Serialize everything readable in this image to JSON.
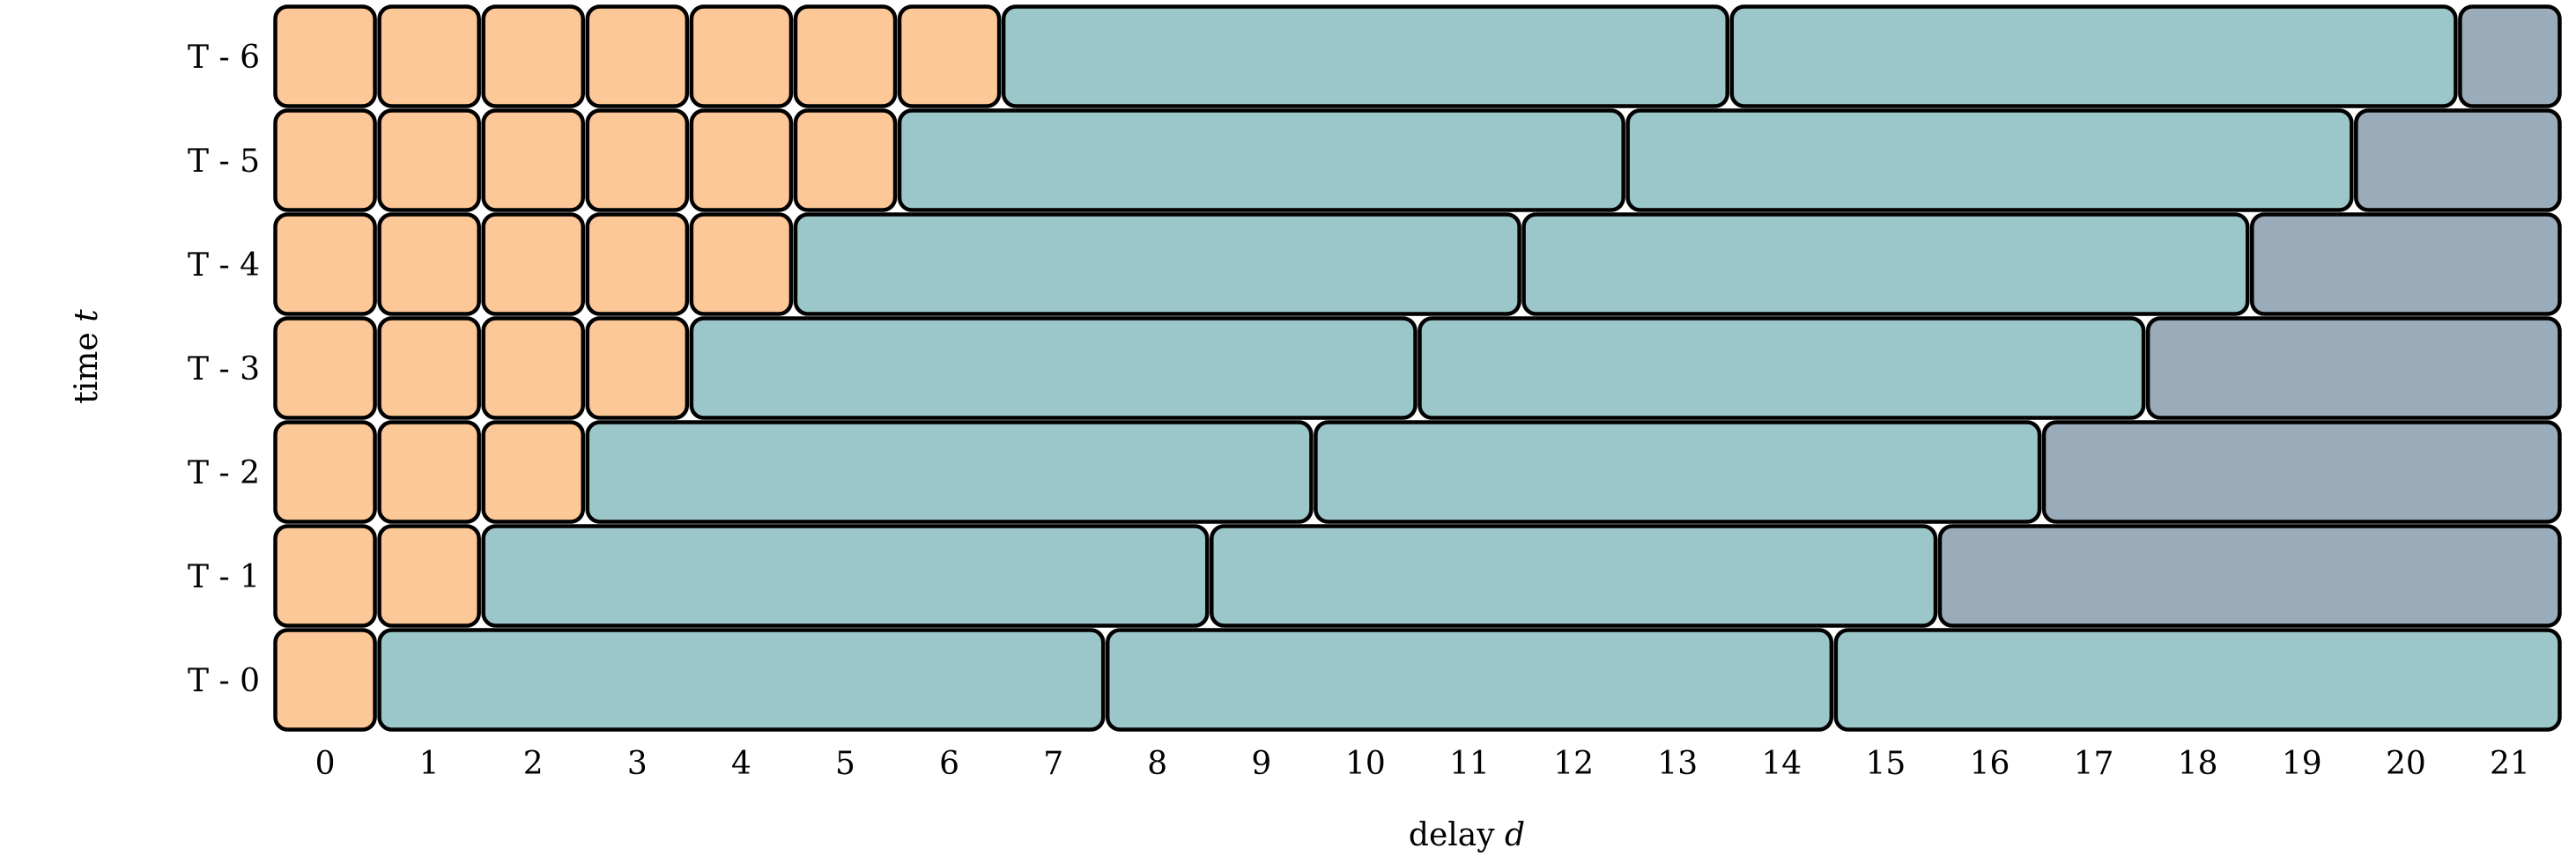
{
  "axes": {
    "y_label_prefix": "time ",
    "y_label_var": "t",
    "x_label_prefix": "delay ",
    "x_label_var": "d"
  },
  "colors": {
    "orange": "#fdc898",
    "teal": "#9cc7ca",
    "slate": "#9aabb9",
    "stroke": "#000000"
  },
  "x_ticks": [
    "0",
    "1",
    "2",
    "3",
    "4",
    "5",
    "6",
    "7",
    "8",
    "9",
    "10",
    "11",
    "12",
    "13",
    "14",
    "15",
    "16",
    "17",
    "18",
    "19",
    "20",
    "21"
  ],
  "rows": [
    {
      "label": "T - 6",
      "blocks": [
        [
          0,
          0,
          "orange"
        ],
        [
          1,
          1,
          "orange"
        ],
        [
          2,
          2,
          "orange"
        ],
        [
          3,
          3,
          "orange"
        ],
        [
          4,
          4,
          "orange"
        ],
        [
          5,
          5,
          "orange"
        ],
        [
          6,
          6,
          "orange"
        ],
        [
          7,
          13,
          "teal"
        ],
        [
          14,
          20,
          "teal"
        ],
        [
          21,
          21,
          "slate"
        ]
      ]
    },
    {
      "label": "T - 5",
      "blocks": [
        [
          0,
          0,
          "orange"
        ],
        [
          1,
          1,
          "orange"
        ],
        [
          2,
          2,
          "orange"
        ],
        [
          3,
          3,
          "orange"
        ],
        [
          4,
          4,
          "orange"
        ],
        [
          5,
          5,
          "orange"
        ],
        [
          6,
          12,
          "teal"
        ],
        [
          13,
          19,
          "teal"
        ],
        [
          20,
          21,
          "slate"
        ]
      ]
    },
    {
      "label": "T - 4",
      "blocks": [
        [
          0,
          0,
          "orange"
        ],
        [
          1,
          1,
          "orange"
        ],
        [
          2,
          2,
          "orange"
        ],
        [
          3,
          3,
          "orange"
        ],
        [
          4,
          4,
          "orange"
        ],
        [
          5,
          11,
          "teal"
        ],
        [
          12,
          18,
          "teal"
        ],
        [
          19,
          21,
          "slate"
        ]
      ]
    },
    {
      "label": "T - 3",
      "blocks": [
        [
          0,
          0,
          "orange"
        ],
        [
          1,
          1,
          "orange"
        ],
        [
          2,
          2,
          "orange"
        ],
        [
          3,
          3,
          "orange"
        ],
        [
          4,
          10,
          "teal"
        ],
        [
          11,
          17,
          "teal"
        ],
        [
          18,
          21,
          "slate"
        ]
      ]
    },
    {
      "label": "T - 2",
      "blocks": [
        [
          0,
          0,
          "orange"
        ],
        [
          1,
          1,
          "orange"
        ],
        [
          2,
          2,
          "orange"
        ],
        [
          3,
          9,
          "teal"
        ],
        [
          10,
          16,
          "teal"
        ],
        [
          17,
          21,
          "slate"
        ]
      ]
    },
    {
      "label": "T - 1",
      "blocks": [
        [
          0,
          0,
          "orange"
        ],
        [
          1,
          1,
          "orange"
        ],
        [
          2,
          8,
          "teal"
        ],
        [
          9,
          15,
          "teal"
        ],
        [
          16,
          21,
          "slate"
        ]
      ]
    },
    {
      "label": "T - 0",
      "blocks": [
        [
          0,
          0,
          "orange"
        ],
        [
          1,
          7,
          "teal"
        ],
        [
          8,
          14,
          "teal"
        ],
        [
          15,
          21,
          "teal"
        ]
      ]
    }
  ]
}
